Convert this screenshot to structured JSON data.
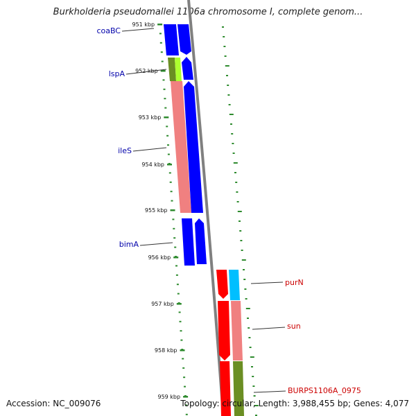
{
  "title": "Burkholderia pseudomallei 1106a chromosome I, complete genom...",
  "accession": "Accession: NC_009076",
  "topology": "Topology: circular; Length: 3,988,455 bp; Genes: 4,077",
  "kbp_ticks": [
    "951 kbp",
    "952 kbp",
    "953 kbp",
    "954 kbp",
    "955 kbp",
    "956 kbp",
    "957 kbp",
    "958 kbp",
    "959 kbp"
  ],
  "gene_labels_left": [
    "coaBC",
    "lspA",
    "ileS",
    "bimA"
  ],
  "gene_labels_right": [
    "purN",
    "sun",
    "BURPS1106A_0975"
  ],
  "colors": {
    "forward_cds": "#0000ff",
    "reverse_cds": "#ff0000",
    "olive": "#6b8e23",
    "lime": "#adff2f",
    "salmon": "#f08080",
    "cyan": "#00bfff",
    "backbone": "#808080",
    "tick": "#2e8b2e",
    "label_blue": "#0000aa",
    "label_red": "#cc0000"
  }
}
